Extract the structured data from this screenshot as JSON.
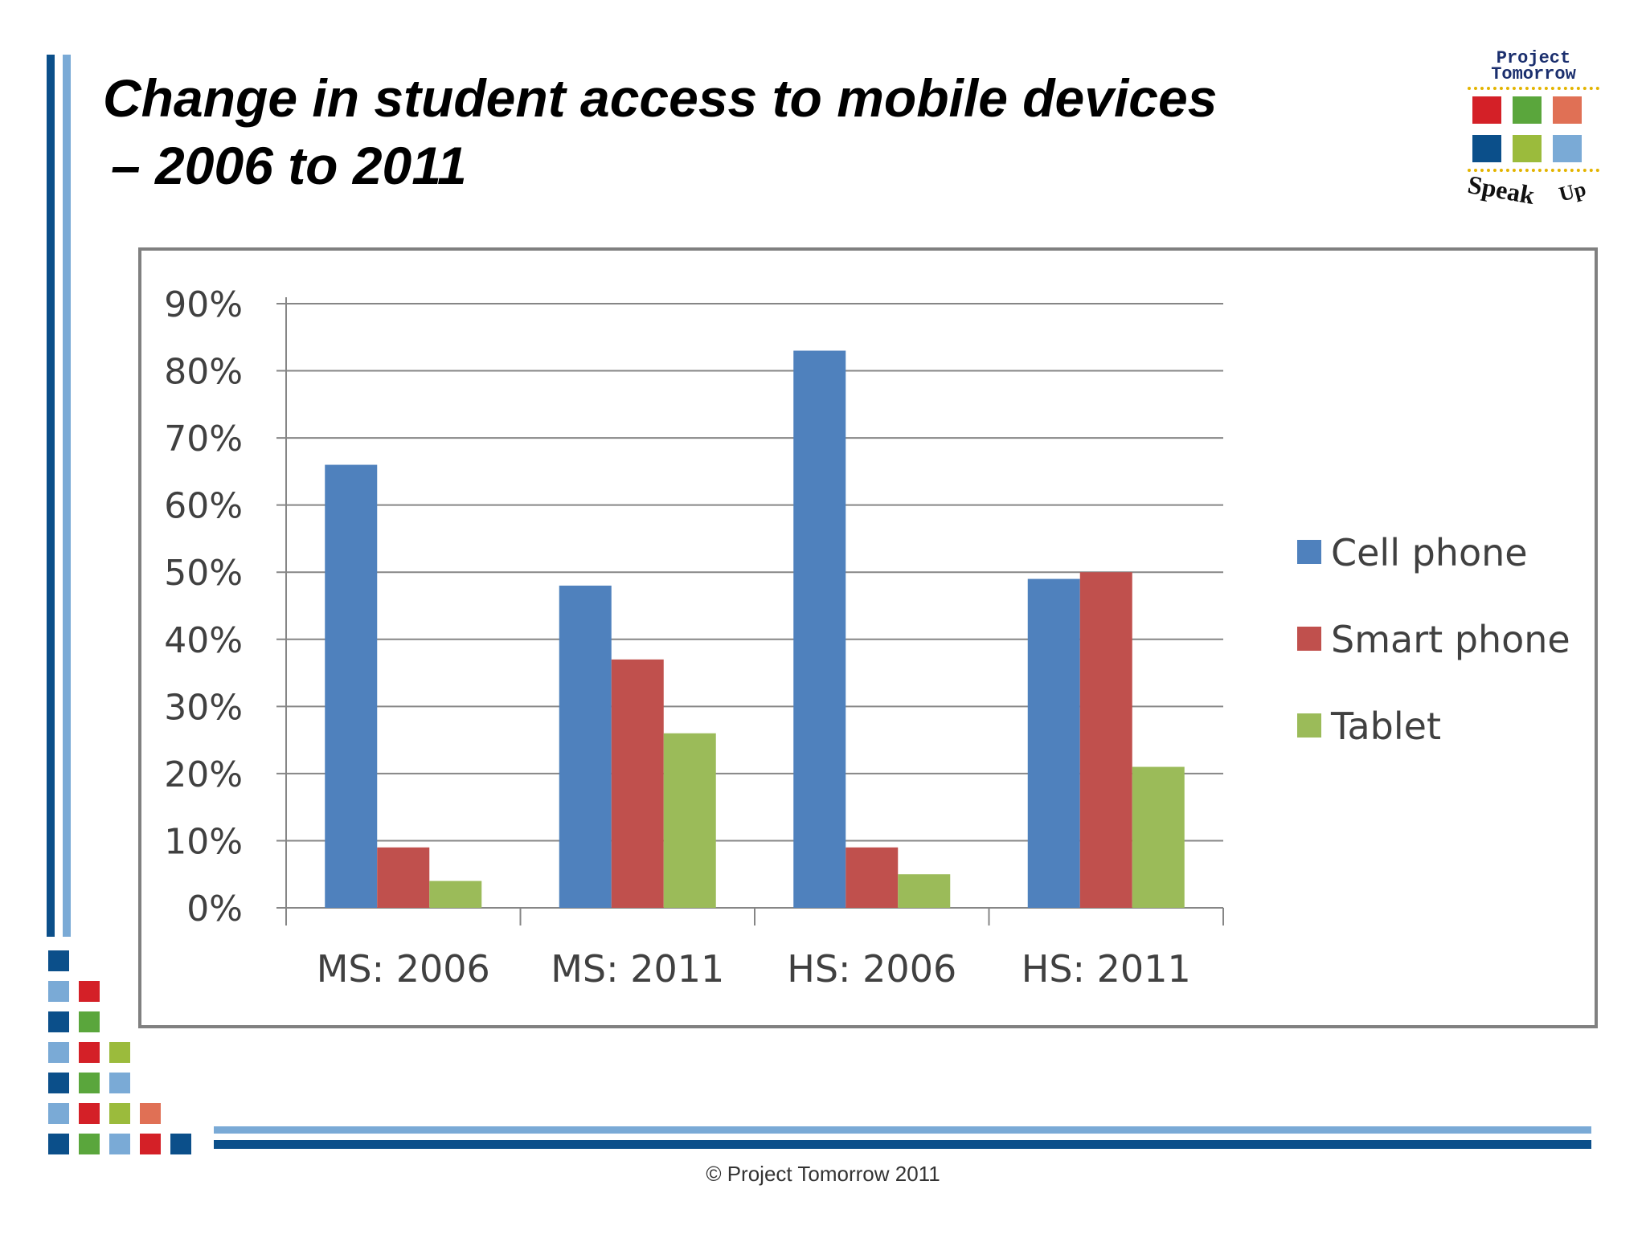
{
  "slide": {
    "title_line1": "Change in student access to mobile devices",
    "title_line2": "– 2006 to 2011",
    "footer": "© Project Tomorrow 2011"
  },
  "logo": {
    "line1": "Project",
    "line2": "Tomorrow",
    "tagline_word1": "Speak",
    "tagline_word2": "Up"
  },
  "colors": {
    "cell_phone": "#4f81bd",
    "smart_phone": "#c0504d",
    "tablet": "#9bbb59",
    "accent_dark": "#0b4f8a",
    "accent_light": "#7aaad6"
  },
  "chart_data": {
    "type": "bar",
    "title": "",
    "xlabel": "",
    "ylabel": "",
    "categories": [
      "MS: 2006",
      "MS: 2011",
      "HS: 2006",
      "HS: 2011"
    ],
    "series": [
      {
        "name": "Cell phone",
        "values": [
          66,
          48,
          83,
          49
        ]
      },
      {
        "name": "Smart phone",
        "values": [
          9,
          37,
          9,
          50
        ]
      },
      {
        "name": "Tablet",
        "values": [
          4,
          26,
          5,
          21
        ]
      }
    ],
    "ylim": [
      0,
      90
    ],
    "yticks": [
      "0%",
      "10%",
      "20%",
      "30%",
      "40%",
      "50%",
      "60%",
      "70%",
      "80%",
      "90%"
    ],
    "grid": true,
    "legend": "right"
  }
}
